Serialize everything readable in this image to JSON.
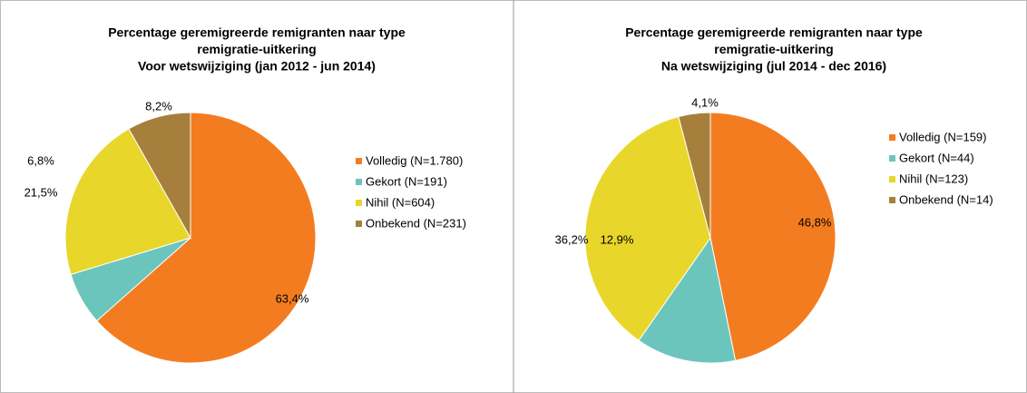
{
  "chart_data": [
    {
      "type": "pie",
      "title": [
        "Percentage geremigreerde remigranten naar type",
        "remigratie-uitkering",
        "Voor wetswijziging (jan 2012 - jun 2014)"
      ],
      "categories": [
        "Volledig (N=1.780)",
        "Gekort (N=191)",
        "Nihil (N=604)",
        "Onbekend (N=231)"
      ],
      "values": [
        63.4,
        6.8,
        21.5,
        8.2
      ],
      "value_labels": [
        "63,4%",
        "6,8%",
        "21,5%",
        "8,2%"
      ],
      "colors": [
        "#f47c20",
        "#6cc5bd",
        "#e8d62a",
        "#a67f3d"
      ],
      "legend": "right"
    },
    {
      "type": "pie",
      "title": [
        "Percentage geremigreerde remigranten naar type",
        "remigratie-uitkering",
        "Na wetswijziging (jul 2014 - dec 2016)"
      ],
      "categories": [
        "Volledig (N=159)",
        "Gekort (N=44)",
        "Nihil (N=123)",
        "Onbekend (N=14)"
      ],
      "values": [
        46.8,
        12.9,
        36.2,
        4.1
      ],
      "value_labels": [
        "46,8%",
        "12,9%",
        "36,2%",
        "4,1%"
      ],
      "colors": [
        "#f47c20",
        "#6cc5bd",
        "#e8d62a",
        "#a67f3d"
      ],
      "legend": "right"
    }
  ]
}
